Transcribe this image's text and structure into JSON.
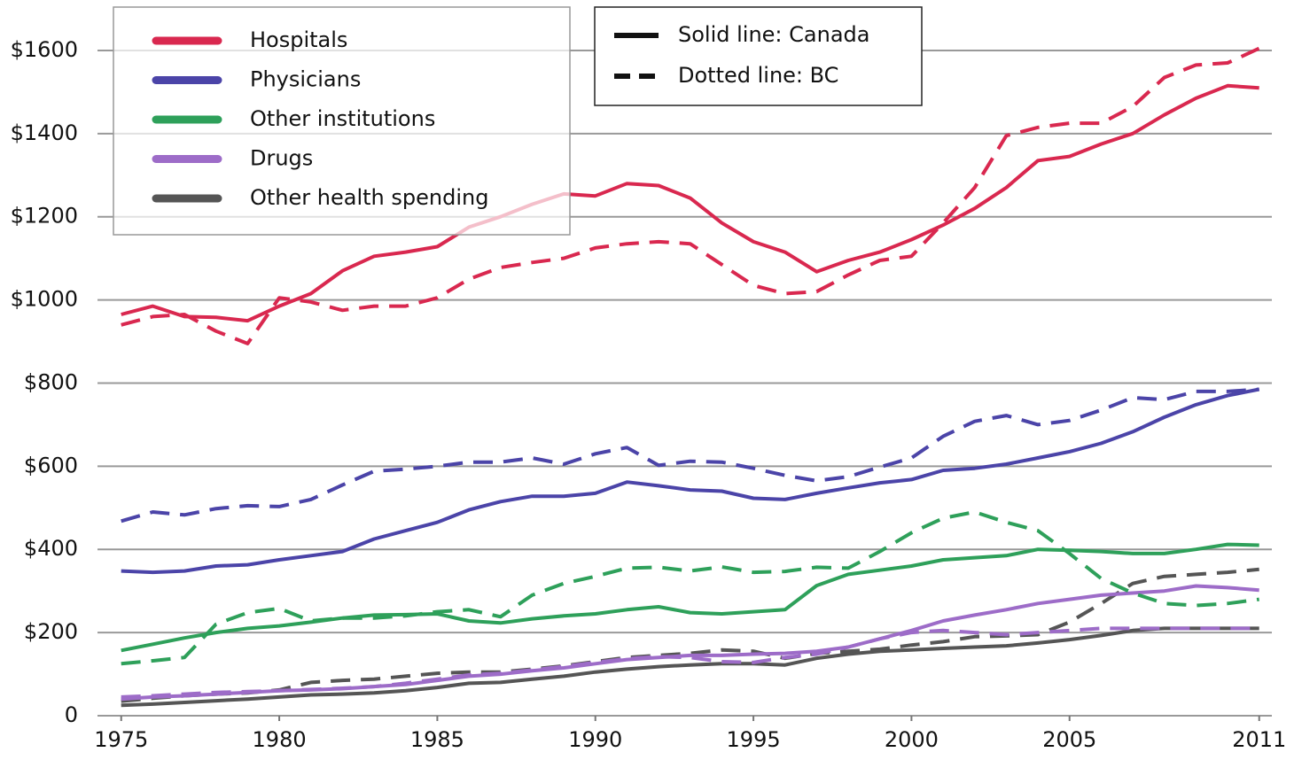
{
  "chart_data": {
    "type": "line",
    "x": [
      1975,
      1976,
      1977,
      1978,
      1979,
      1980,
      1981,
      1982,
      1983,
      1984,
      1985,
      1986,
      1987,
      1988,
      1989,
      1990,
      1991,
      1992,
      1993,
      1994,
      1995,
      1996,
      1997,
      1998,
      1999,
      2000,
      2001,
      2002,
      2003,
      2004,
      2005,
      2006,
      2007,
      2008,
      2009,
      2010,
      2011
    ],
    "xlim": [
      1974.25,
      2011.4
    ],
    "xticks": [
      1975,
      1980,
      1985,
      1990,
      1995,
      2000,
      2005,
      2011
    ],
    "ylim": [
      0,
      1700
    ],
    "yticks": [
      0,
      {
        "value": 200,
        "label": "$200"
      },
      {
        "value": 400,
        "label": "$400"
      },
      {
        "value": 600,
        "label": "$600"
      },
      {
        "value": 800,
        "label": "$800"
      },
      {
        "value": 1000,
        "label": "$1000"
      },
      {
        "value": 1200,
        "label": "$1200"
      },
      {
        "value": 1400,
        "label": "$1400"
      },
      {
        "value": 1600,
        "label": "$1600"
      }
    ],
    "grid": true,
    "line_styles": [
      {
        "label": "Solid line: Canada",
        "key": "canada",
        "dashed": false
      },
      {
        "label": "Dotted line: BC",
        "key": "bc",
        "dashed": true
      }
    ],
    "series": [
      {
        "name": "Hospitals",
        "color": "#d9284f",
        "canada": [
          965,
          985,
          960,
          958,
          950,
          985,
          1015,
          1070,
          1105,
          1115,
          1128,
          1175,
          1200,
          1230,
          1255,
          1250,
          1280,
          1275,
          1245,
          1185,
          1140,
          1115,
          1068,
          1095,
          1115,
          1145,
          1180,
          1220,
          1270,
          1335,
          1345,
          1375,
          1400,
          1445,
          1485,
          1515,
          1510
        ],
        "bc": [
          940,
          960,
          965,
          925,
          895,
          1005,
          995,
          975,
          985,
          985,
          1005,
          1050,
          1078,
          1090,
          1100,
          1125,
          1135,
          1140,
          1135,
          1085,
          1035,
          1015,
          1020,
          1060,
          1095,
          1105,
          1185,
          1270,
          1395,
          1415,
          1425,
          1425,
          1465,
          1535,
          1565,
          1570,
          1605
        ]
      },
      {
        "name": "Physicians",
        "color": "#4b44a8",
        "canada": [
          348,
          345,
          348,
          360,
          363,
          375,
          385,
          395,
          425,
          445,
          465,
          495,
          515,
          528,
          528,
          535,
          562,
          553,
          543,
          540,
          523,
          520,
          535,
          548,
          560,
          568,
          590,
          595,
          605,
          620,
          635,
          655,
          683,
          718,
          748,
          770,
          785
        ],
        "bc": [
          468,
          490,
          483,
          498,
          505,
          503,
          520,
          555,
          588,
          593,
          600,
          610,
          610,
          620,
          605,
          630,
          645,
          602,
          612,
          610,
          595,
          578,
          565,
          575,
          598,
          620,
          672,
          708,
          722,
          700,
          710,
          735,
          765,
          760,
          780,
          780,
          785
        ]
      },
      {
        "name": "Other institutions",
        "color": "#2ea05a",
        "canada": [
          157,
          172,
          187,
          200,
          210,
          216,
          225,
          235,
          242,
          243,
          245,
          228,
          223,
          233,
          240,
          245,
          255,
          262,
          248,
          245,
          250,
          255,
          313,
          340,
          350,
          360,
          375,
          380,
          385,
          400,
          398,
          395,
          390,
          390,
          400,
          412,
          410
        ],
        "bc": [
          125,
          132,
          140,
          220,
          248,
          258,
          228,
          235,
          235,
          240,
          250,
          255,
          238,
          290,
          318,
          335,
          355,
          357,
          348,
          358,
          345,
          347,
          357,
          355,
          395,
          440,
          475,
          490,
          465,
          445,
          390,
          330,
          295,
          270,
          265,
          270,
          280
        ]
      },
      {
        "name": "Drugs",
        "color": "#9d6cc8",
        "canada": [
          40,
          45,
          48,
          52,
          56,
          60,
          62,
          65,
          70,
          75,
          85,
          95,
          100,
          108,
          115,
          125,
          135,
          140,
          145,
          145,
          148,
          150,
          155,
          165,
          185,
          205,
          228,
          242,
          255,
          270,
          280,
          290,
          295,
          300,
          312,
          308,
          302
        ],
        "bc": [
          45,
          48,
          52,
          56,
          58,
          60,
          63,
          66,
          70,
          78,
          88,
          98,
          102,
          110,
          118,
          128,
          137,
          142,
          140,
          130,
          128,
          140,
          148,
          165,
          185,
          200,
          205,
          200,
          195,
          200,
          205,
          210,
          210,
          210,
          210,
          210,
          210
        ]
      },
      {
        "name": "Other health spending",
        "color": "#555555",
        "canada": [
          25,
          28,
          32,
          36,
          40,
          45,
          50,
          52,
          55,
          60,
          68,
          78,
          80,
          88,
          95,
          105,
          112,
          118,
          122,
          125,
          125,
          122,
          138,
          148,
          155,
          158,
          162,
          165,
          168,
          175,
          183,
          193,
          205,
          210,
          210,
          210,
          210
        ],
        "bc": [
          35,
          42,
          48,
          52,
          55,
          62,
          80,
          85,
          88,
          95,
          102,
          105,
          105,
          112,
          120,
          130,
          140,
          145,
          150,
          158,
          155,
          138,
          150,
          155,
          160,
          170,
          178,
          190,
          192,
          195,
          225,
          270,
          318,
          335,
          340,
          345,
          352
        ]
      }
    ]
  }
}
